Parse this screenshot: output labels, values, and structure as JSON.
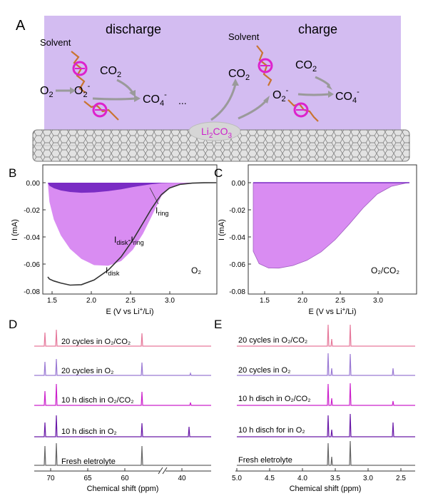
{
  "panel_a": {
    "letter": "A",
    "discharge_label": "discharge",
    "charge_label": "charge",
    "solvent_label": "Solvent",
    "o2": "O",
    "sub2": "2",
    "minus": "-",
    "co": "CO",
    "ellipsis": "...",
    "li": "Li",
    "three": "3",
    "colors": {
      "background": "#cdb3ef",
      "li2co3_ellipse": "#d6d6d6",
      "li2co3_text": "#cc22cc",
      "solvent_ring": "#dd22cc",
      "solvent_chain": "#c97431",
      "arrow": "#9a9a9a"
    }
  },
  "panel_b": {
    "letter": "B",
    "gas_label": "O₂",
    "i_ring_label": "I",
    "ring_sub": "ring",
    "i_diff_prefix": "I",
    "disk_sub": "disk",
    "diff_mid": "-I",
    "i_disk_label": "I",
    "colors": {
      "fill": "#d98cf2",
      "ring": "#7a2cc4",
      "disk_line": "#333333"
    }
  },
  "panel_c": {
    "letter": "C",
    "gas_label": "O₂/CO₂",
    "colors": {
      "fill": "#d98cf2",
      "edge": "#a060c0"
    }
  },
  "cv_axes": {
    "ylabel": "I (mA)",
    "xlabel": "E (V vs Li",
    "xlabel_sup": "+",
    "xlabel_end": "/Li)",
    "yticks": [
      "0.00",
      "-0.02",
      "-0.04",
      "-0.06",
      "-0.08"
    ],
    "xticks": [
      "1.5",
      "2.0",
      "2.5",
      "3.0"
    ]
  },
  "panel_d": {
    "letter": "D",
    "xlabel": "Chemical shift (ppm)",
    "xticks": [
      "70",
      "65",
      "60",
      "40"
    ],
    "traces": [
      {
        "label": "20 cycles in O₂/CO₂",
        "color": "#e6799b"
      },
      {
        "label": "20 cycles in O₂",
        "color": "#9b7ad4"
      },
      {
        "label": "10 h disch in O₂/CO₂",
        "color": "#cc22cc"
      },
      {
        "label": "10 h disch in O₂",
        "color": "#6a1aa8"
      },
      {
        "label": "Fresh eletrolyte",
        "color": "#666666"
      }
    ]
  },
  "panel_e": {
    "letter": "E",
    "xlabel": "Chemical shift (ppm)",
    "xticks": [
      "5.0",
      "4.5",
      "4.0",
      "3.5",
      "3.0",
      "2.5"
    ],
    "traces": [
      {
        "label": "20 cycles in O₂/CO₂",
        "color": "#e6799b"
      },
      {
        "label": "20 cycles in O₂",
        "color": "#9b7ad4"
      },
      {
        "label": "10 h disch in O₂/CO₂",
        "color": "#cc22cc"
      },
      {
        "label": "10 h disch for in O₂",
        "color": "#6a1aa8"
      },
      {
        "label": "Fresh eletrolyte",
        "color": "#666666"
      }
    ]
  }
}
